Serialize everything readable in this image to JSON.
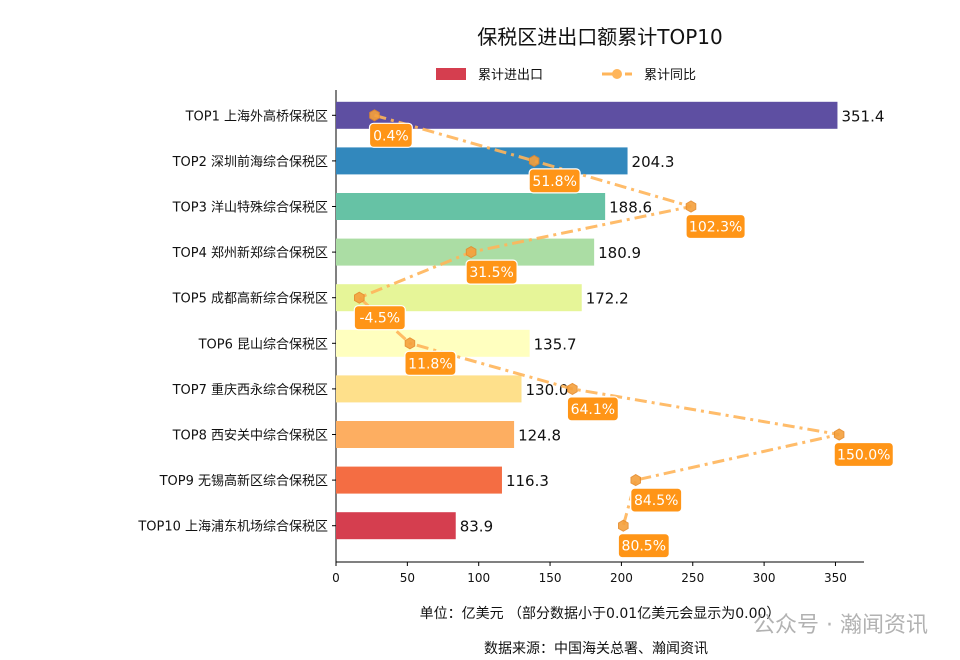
{
  "chart_data": {
    "type": "bar",
    "orientation": "horizontal",
    "title": "保税区进出口额累计TOP10",
    "categories": [
      "TOP1 上海外高桥保税区",
      "TOP2 深圳前海综合保税区",
      "TOP3 洋山特殊综合保税区",
      "TOP4 郑州新郑综合保税区",
      "TOP5 成都高新综合保税区",
      "TOP6 昆山综合保税区",
      "TOP7 重庆西永综合保税区",
      "TOP8 西安关中综合保税区",
      "TOP9 无锡高新区综合保税区",
      "TOP10 上海浦东机场综合保税区"
    ],
    "series": [
      {
        "name": "累计进出口",
        "type": "bar",
        "values": [
          351.4,
          204.3,
          188.6,
          180.9,
          172.2,
          135.7,
          130.0,
          124.8,
          116.3,
          83.9
        ],
        "labels": [
          "351.4",
          "204.3",
          "188.6",
          "180.9",
          "172.2",
          "135.7",
          "130.0",
          "124.8",
          "116.3",
          "83.9"
        ],
        "colors": [
          "#5e4fa2",
          "#3288bd",
          "#66c2a5",
          "#abdda4",
          "#e6f598",
          "#ffffbf",
          "#fee08b",
          "#fdae61",
          "#f46d43",
          "#d53e4f"
        ]
      },
      {
        "name": "累计同比",
        "type": "line",
        "unit": "%",
        "values": [
          0.4,
          51.8,
          102.3,
          31.5,
          -4.5,
          11.8,
          64.1,
          150.0,
          84.5,
          80.5
        ],
        "labels": [
          "0.4%",
          "51.8%",
          "102.3%",
          "31.5%",
          "-4.5%",
          "11.8%",
          "64.1%",
          "150.0%",
          "84.5%",
          "80.5%"
        ],
        "color": "#ffb55a",
        "label_box_color": "#ff9517",
        "line_style": "dash-dot",
        "marker": "hexagon"
      }
    ],
    "xlim": [
      0,
      370
    ],
    "xticks": [
      "0",
      "50",
      "100",
      "150",
      "200",
      "250",
      "300",
      "350"
    ],
    "secondary_xlim": [
      -12,
      158
    ],
    "legend": "top-center",
    "grid": false,
    "xlabel": "单位：亿美元  （部分数据小于0.01亿美元会显示为0.00）",
    "source": "数据来源：中国海关总署、瀚闻资讯",
    "watermark": "公众号 · 瀚闻资讯"
  }
}
